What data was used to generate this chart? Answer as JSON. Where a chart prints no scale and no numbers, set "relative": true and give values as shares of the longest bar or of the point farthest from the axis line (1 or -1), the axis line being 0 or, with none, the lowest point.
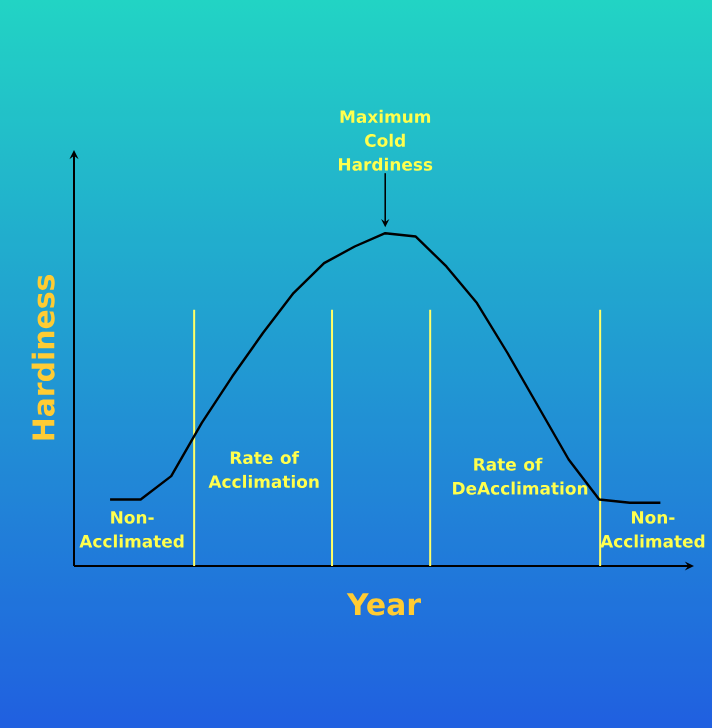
{
  "chart_data": {
    "type": "line",
    "relative": true,
    "xlabel": "Year",
    "ylabel": "Hardiness",
    "categories": [
      null,
      null,
      null,
      null,
      null,
      null,
      null,
      null,
      null,
      null,
      null,
      null,
      null,
      null,
      null,
      null,
      null,
      null,
      null
    ],
    "tick_labels": false,
    "series": [
      {
        "color": "#000000",
        "values": [
          0.2,
          0.2,
          0.27,
          0.43,
          0.57,
          0.7,
          0.82,
          0.91,
          0.96,
          1.0,
          0.99,
          0.9,
          0.79,
          0.64,
          0.48,
          0.32,
          0.2,
          0.19,
          0.19
        ]
      }
    ],
    "annotations": [
      "Maximum Cold Hardiness",
      "Non-Acclimated",
      "Rate of Acclimation",
      "Rate of DeAcclimation",
      "Non-Acclimated"
    ],
    "marker": "none",
    "line_style": "solid"
  }
}
